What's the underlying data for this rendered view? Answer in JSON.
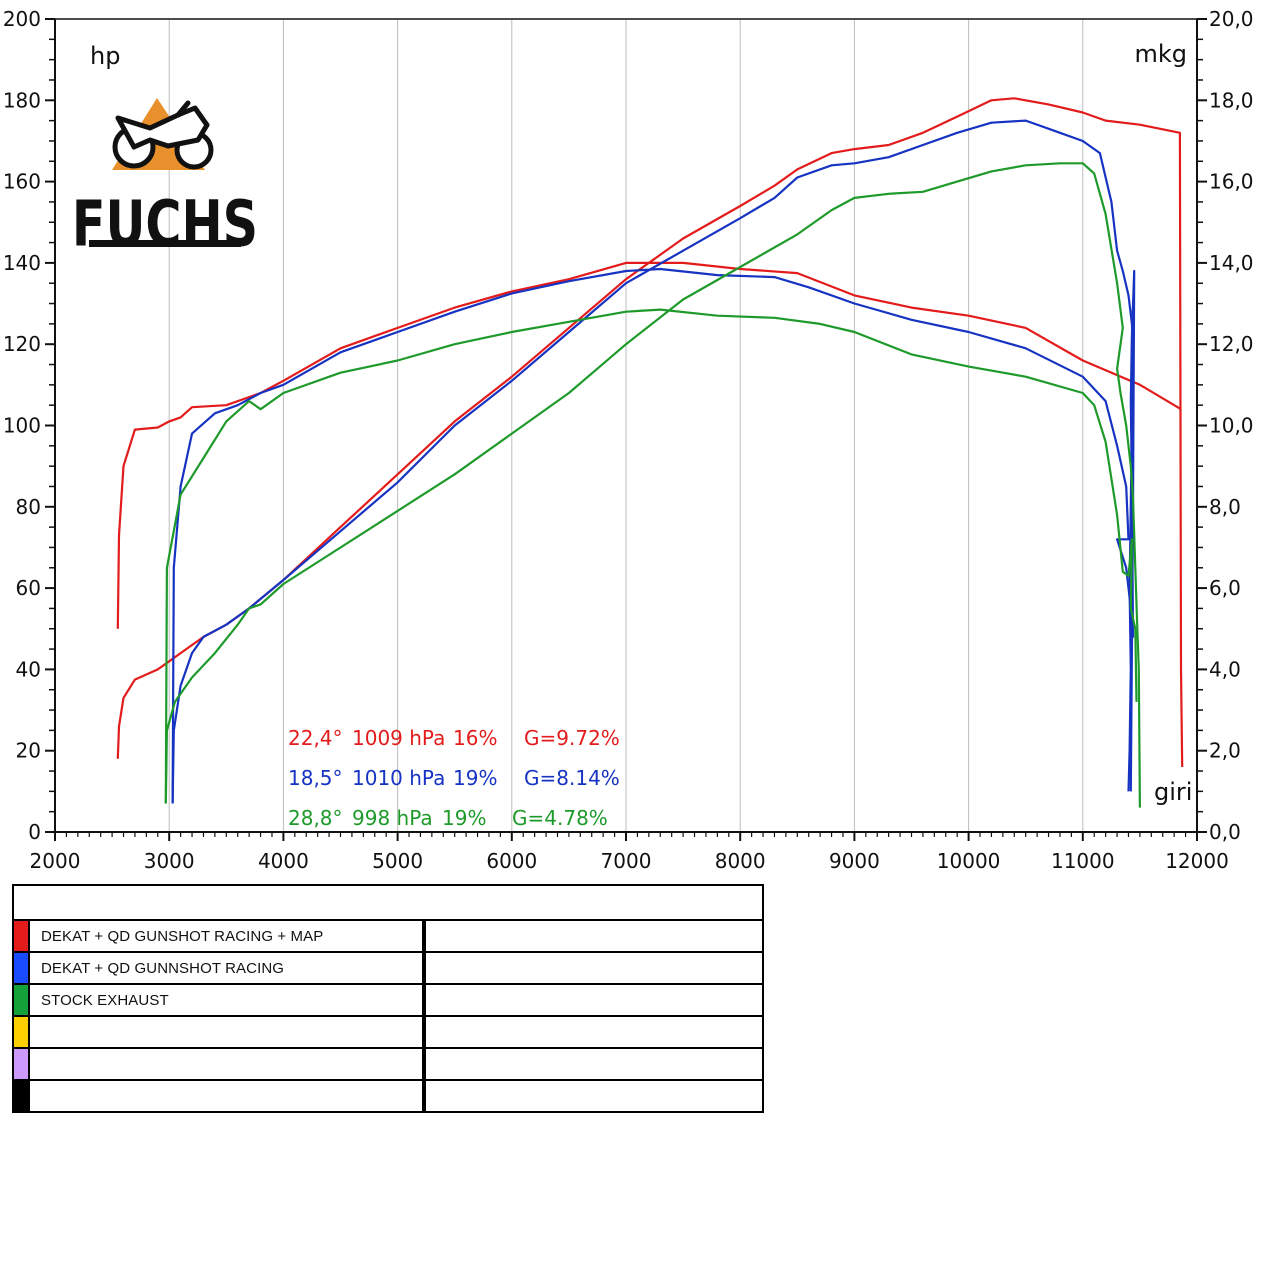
{
  "logo": {
    "text": "FUCHS"
  },
  "chart_data": {
    "type": "line",
    "x_label": "giri",
    "y_left_label": "hp",
    "y_right_label": "mkg",
    "xlim": [
      2000,
      12000
    ],
    "ylim_left": [
      0,
      200
    ],
    "ylim_right": [
      0.0,
      20.0
    ],
    "x_ticks": [
      "2000",
      "3000",
      "4000",
      "5000",
      "6000",
      "7000",
      "8000",
      "9000",
      "10000",
      "11000",
      "12000"
    ],
    "y_left_ticks": [
      "0",
      "20",
      "40",
      "60",
      "80",
      "100",
      "120",
      "140",
      "160",
      "180",
      "200"
    ],
    "y_right_ticks": [
      "0,0",
      "2,0",
      "4,0",
      "6,0",
      "8,0",
      "10,0",
      "12,0",
      "14,0",
      "16,0",
      "18,0",
      "20,0"
    ],
    "grid": true,
    "series": [
      {
        "name": "DEKAT + QD GUNSHOT RACING + MAP",
        "color": "#e31b1b",
        "hp": [
          [
            2550,
            18
          ],
          [
            2560,
            26
          ],
          [
            2600,
            33
          ],
          [
            2700,
            37.5
          ],
          [
            2900,
            40
          ],
          [
            3000,
            42
          ],
          [
            3100,
            44
          ],
          [
            3300,
            48
          ],
          [
            3500,
            51
          ],
          [
            3700,
            55
          ],
          [
            4000,
            62
          ],
          [
            4500,
            75
          ],
          [
            5000,
            88
          ],
          [
            5500,
            101
          ],
          [
            6000,
            112
          ],
          [
            6500,
            124
          ],
          [
            7000,
            136
          ],
          [
            7500,
            146
          ],
          [
            8000,
            154
          ],
          [
            8300,
            159
          ],
          [
            8500,
            163
          ],
          [
            8800,
            167
          ],
          [
            9000,
            168
          ],
          [
            9300,
            169
          ],
          [
            9600,
            172
          ],
          [
            9900,
            176
          ],
          [
            10200,
            180
          ],
          [
            10400,
            180.5
          ],
          [
            10700,
            179
          ],
          [
            11000,
            177
          ],
          [
            11200,
            175
          ],
          [
            11500,
            174
          ],
          [
            11850,
            172
          ],
          [
            11860,
            40
          ],
          [
            11870,
            16
          ]
        ],
        "torque": [
          [
            2550,
            5.0
          ],
          [
            2560,
            7.3
          ],
          [
            2600,
            9.0
          ],
          [
            2700,
            9.9
          ],
          [
            2900,
            9.95
          ],
          [
            3000,
            10.1
          ],
          [
            3100,
            10.2
          ],
          [
            3200,
            10.45
          ],
          [
            3500,
            10.5
          ],
          [
            3800,
            10.8
          ],
          [
            4000,
            11.1
          ],
          [
            4500,
            11.9
          ],
          [
            5000,
            12.4
          ],
          [
            5500,
            12.9
          ],
          [
            6000,
            13.3
          ],
          [
            6500,
            13.6
          ],
          [
            7000,
            14.0
          ],
          [
            7500,
            14.0
          ],
          [
            8000,
            13.85
          ],
          [
            8500,
            13.75
          ],
          [
            9000,
            13.2
          ],
          [
            9500,
            12.9
          ],
          [
            10000,
            12.7
          ],
          [
            10500,
            12.4
          ],
          [
            11000,
            11.6
          ],
          [
            11500,
            11.0
          ],
          [
            11860,
            10.4
          ]
        ]
      },
      {
        "name": "DEKAT + QD GUNNSHOT RACING",
        "color": "#1633c2",
        "hp": [
          [
            3030,
            7
          ],
          [
            3040,
            25
          ],
          [
            3100,
            36
          ],
          [
            3200,
            44
          ],
          [
            3300,
            48
          ],
          [
            3500,
            51
          ],
          [
            3700,
            55
          ],
          [
            4000,
            62
          ],
          [
            4500,
            74
          ],
          [
            5000,
            86
          ],
          [
            5500,
            100
          ],
          [
            6000,
            111
          ],
          [
            6500,
            123
          ],
          [
            7000,
            135
          ],
          [
            7500,
            143
          ],
          [
            8000,
            151
          ],
          [
            8300,
            156
          ],
          [
            8500,
            161
          ],
          [
            8800,
            164
          ],
          [
            9000,
            164.5
          ],
          [
            9300,
            166
          ],
          [
            9600,
            169
          ],
          [
            9900,
            172
          ],
          [
            10200,
            174.5
          ],
          [
            10500,
            175
          ],
          [
            10800,
            172
          ],
          [
            11000,
            170
          ],
          [
            11150,
            167
          ],
          [
            11250,
            155
          ],
          [
            11300,
            143
          ],
          [
            11350,
            138
          ],
          [
            11400,
            132
          ],
          [
            11430,
            125
          ],
          [
            11440,
            118
          ],
          [
            11410,
            60
          ],
          [
            11420,
            40
          ],
          [
            11410,
            20
          ],
          [
            11400,
            10
          ]
        ],
        "torque": [
          [
            3030,
            0.7
          ],
          [
            3040,
            6.5
          ],
          [
            3100,
            8.5
          ],
          [
            3200,
            9.8
          ],
          [
            3400,
            10.3
          ],
          [
            3600,
            10.5
          ],
          [
            3800,
            10.8
          ],
          [
            4000,
            11.0
          ],
          [
            4500,
            11.8
          ],
          [
            5000,
            12.3
          ],
          [
            5500,
            12.8
          ],
          [
            6000,
            13.25
          ],
          [
            6500,
            13.55
          ],
          [
            7000,
            13.8
          ],
          [
            7300,
            13.85
          ],
          [
            7800,
            13.7
          ],
          [
            8300,
            13.65
          ],
          [
            8600,
            13.4
          ],
          [
            9000,
            13.0
          ],
          [
            9500,
            12.6
          ],
          [
            10000,
            12.3
          ],
          [
            10500,
            11.9
          ],
          [
            11000,
            11.2
          ],
          [
            11200,
            10.6
          ],
          [
            11300,
            9.5
          ],
          [
            11380,
            8.5
          ],
          [
            11400,
            7.2
          ],
          [
            11300,
            7.2
          ],
          [
            11380,
            6.5
          ],
          [
            11420,
            5.5
          ],
          [
            11440,
            4.8
          ],
          [
            11430,
            8.5
          ],
          [
            11420,
            10.6
          ],
          [
            11430,
            12.2
          ],
          [
            11450,
            13.8
          ],
          [
            11440,
            8.0
          ],
          [
            11420,
            1.0
          ]
        ]
      },
      {
        "name": "STOCK EXHAUST",
        "color": "#1e9a2b",
        "hp": [
          [
            2970,
            7
          ],
          [
            2980,
            25
          ],
          [
            3050,
            32
          ],
          [
            3200,
            38
          ],
          [
            3400,
            44
          ],
          [
            3600,
            51
          ],
          [
            3700,
            55
          ],
          [
            3800,
            56
          ],
          [
            4000,
            61
          ],
          [
            4500,
            70
          ],
          [
            5000,
            79
          ],
          [
            5500,
            88
          ],
          [
            6000,
            98
          ],
          [
            6500,
            108
          ],
          [
            7000,
            120
          ],
          [
            7500,
            131
          ],
          [
            8000,
            139
          ],
          [
            8500,
            147
          ],
          [
            8800,
            153
          ],
          [
            9000,
            156
          ],
          [
            9300,
            157
          ],
          [
            9600,
            157.5
          ],
          [
            9900,
            160
          ],
          [
            10200,
            162.5
          ],
          [
            10500,
            164
          ],
          [
            10800,
            164.5
          ],
          [
            11000,
            164.5
          ],
          [
            11100,
            162
          ],
          [
            11200,
            152
          ],
          [
            11300,
            135
          ],
          [
            11350,
            124
          ],
          [
            11300,
            114
          ],
          [
            11330,
            108
          ],
          [
            11380,
            100
          ],
          [
            11420,
            90
          ],
          [
            11440,
            82
          ],
          [
            11460,
            65
          ],
          [
            11480,
            48
          ],
          [
            11490,
            40
          ],
          [
            11500,
            6
          ]
        ],
        "torque": [
          [
            2970,
            0.7
          ],
          [
            2980,
            6.5
          ],
          [
            3100,
            8.3
          ],
          [
            3300,
            9.2
          ],
          [
            3500,
            10.1
          ],
          [
            3700,
            10.6
          ],
          [
            3800,
            10.4
          ],
          [
            4000,
            10.8
          ],
          [
            4500,
            11.3
          ],
          [
            5000,
            11.6
          ],
          [
            5500,
            12.0
          ],
          [
            6000,
            12.3
          ],
          [
            6500,
            12.55
          ],
          [
            7000,
            12.8
          ],
          [
            7300,
            12.85
          ],
          [
            7800,
            12.7
          ],
          [
            8300,
            12.65
          ],
          [
            8700,
            12.5
          ],
          [
            9000,
            12.3
          ],
          [
            9500,
            11.75
          ],
          [
            10000,
            11.45
          ],
          [
            10500,
            11.2
          ],
          [
            11000,
            10.8
          ],
          [
            11100,
            10.5
          ],
          [
            11200,
            9.6
          ],
          [
            11300,
            7.8
          ],
          [
            11350,
            6.4
          ],
          [
            11400,
            6.3
          ],
          [
            11430,
            7.2
          ],
          [
            11420,
            5.5
          ],
          [
            11460,
            5.0
          ],
          [
            11470,
            3.2
          ]
        ]
      }
    ],
    "conditions": [
      {
        "color": "#e31b1b",
        "temp": "22,4°",
        "pressure": "1009 hPa",
        "humidity": "16%",
        "g": "G=9.72%"
      },
      {
        "color": "#1633c2",
        "temp": "18,5°",
        "pressure": "1010 hPa",
        "humidity": "19%",
        "g": "G=8.14%"
      },
      {
        "color": "#1e9a2b",
        "temp": "28,8°",
        "pressure": "998 hPa",
        "humidity": "19%",
        "g": "G=4.78%"
      }
    ]
  },
  "legend": {
    "rows": [
      {
        "color": "#e31b1b",
        "label": "DEKAT + QD GUNSHOT RACING + MAP"
      },
      {
        "color": "#1a4bff",
        "label": "DEKAT + QD GUNNSHOT RACING"
      },
      {
        "color": "#15a13a",
        "label": "STOCK EXHAUST"
      },
      {
        "color": "#ffd000",
        "label": ""
      },
      {
        "color": "#cc99ff",
        "label": ""
      },
      {
        "color": "#000000",
        "label": ""
      }
    ]
  }
}
